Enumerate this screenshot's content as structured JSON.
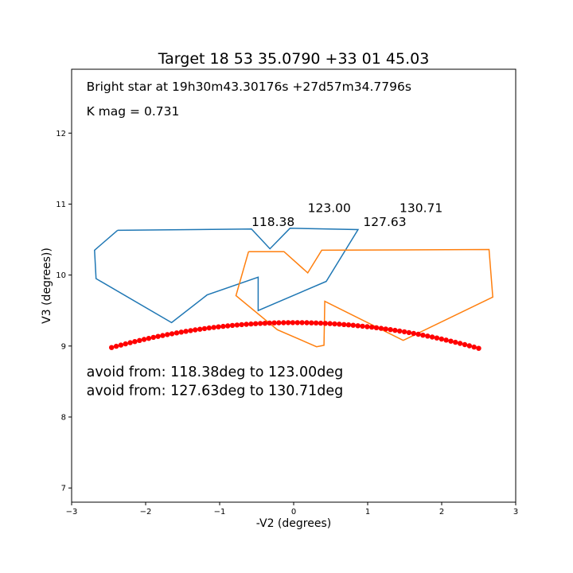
{
  "chart_data": {
    "type": "scatter",
    "title": "Target 18 53 35.0790 +33 01 45.03",
    "xlabel": "-V2 (degrees)",
    "ylabel": "V3 (degrees))",
    "xlim": [
      -3,
      3
    ],
    "ylim": [
      6.8,
      12.9
    ],
    "xticks": [
      -3,
      -2,
      -1,
      0,
      1,
      2,
      3
    ],
    "yticks": [
      7,
      8,
      9,
      10,
      11,
      12
    ],
    "grid": false,
    "colors": {
      "blue": "#1f77b4",
      "orange": "#ff7f0e",
      "red": "#ff0000"
    },
    "text_lines": [
      {
        "text": "Bright star at   19h30m43.30176s +27d57m34.7796s",
        "x": -2.8,
        "y": 12.6
      },
      {
        "text": "K mag = 0.731",
        "x": -2.8,
        "y": 12.25
      },
      {
        "text": "avoid from: 118.38deg to 123.00deg",
        "x": -2.8,
        "y": 8.57
      },
      {
        "text": "avoid from: 127.63deg to 130.71deg",
        "x": -2.8,
        "y": 8.31
      }
    ],
    "angle_labels": [
      {
        "text": "118.38",
        "x": -0.57,
        "y": 10.69
      },
      {
        "text": "123.00",
        "x": 0.19,
        "y": 10.89
      },
      {
        "text": "127.63",
        "x": 0.94,
        "y": 10.69
      },
      {
        "text": "130.71",
        "x": 1.43,
        "y": 10.89
      }
    ],
    "outlines": [
      {
        "color": "blue",
        "points": [
          [
            -2.38,
            10.63
          ],
          [
            -0.57,
            10.65
          ],
          [
            -0.32,
            10.37
          ],
          [
            -0.05,
            10.66
          ],
          [
            0.87,
            10.64
          ],
          [
            0.44,
            9.91
          ],
          [
            -0.48,
            9.5
          ],
          [
            -0.48,
            9.97
          ],
          [
            -1.17,
            9.72
          ],
          [
            -1.65,
            9.33
          ],
          [
            -2.67,
            9.95
          ],
          [
            -2.69,
            10.35
          ],
          [
            -2.38,
            10.63
          ]
        ]
      },
      {
        "color": "orange",
        "points": [
          [
            -0.61,
            10.33
          ],
          [
            -0.13,
            10.33
          ],
          [
            0.19,
            10.03
          ],
          [
            0.38,
            10.35
          ],
          [
            2.64,
            10.36
          ],
          [
            2.69,
            9.69
          ],
          [
            1.48,
            9.08
          ],
          [
            0.42,
            9.63
          ],
          [
            0.41,
            9.01
          ],
          [
            0.31,
            8.99
          ],
          [
            -0.22,
            9.23
          ],
          [
            -0.78,
            9.71
          ],
          [
            -0.61,
            10.33
          ]
        ]
      }
    ],
    "arc": {
      "color": "red",
      "x_start": -2.46,
      "x_end": 2.5,
      "count": 80,
      "center_x": 0,
      "peak_y": 9.33,
      "curvature": 0.058
    }
  }
}
